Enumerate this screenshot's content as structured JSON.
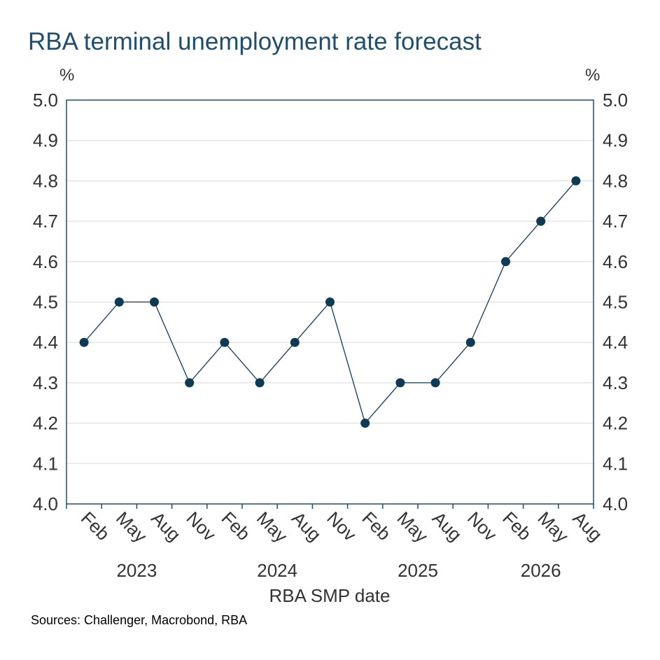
{
  "chart_data": {
    "type": "line",
    "title": "RBA terminal unemployment rate forecast",
    "xlabel": "RBA SMP date",
    "ylabel_left": "%",
    "ylabel_right": "%",
    "ylim": [
      4.0,
      5.0
    ],
    "yticks": [
      "4.0",
      "4.1",
      "4.2",
      "4.3",
      "4.4",
      "4.5",
      "4.6",
      "4.7",
      "4.8",
      "4.9",
      "5.0"
    ],
    "categories": [
      "Feb",
      "May",
      "Aug",
      "Nov",
      "Feb",
      "May",
      "Aug",
      "Nov",
      "Feb",
      "May",
      "Aug",
      "Nov",
      "Feb",
      "May",
      "Aug"
    ],
    "years": [
      {
        "label": "2023",
        "start": 0,
        "end": 3
      },
      {
        "label": "2024",
        "start": 4,
        "end": 7
      },
      {
        "label": "2025",
        "start": 8,
        "end": 11
      },
      {
        "label": "2026",
        "start": 12,
        "end": 14
      }
    ],
    "series": [
      {
        "values": [
          4.4,
          4.5,
          4.5,
          4.3,
          4.4,
          4.3,
          4.4,
          4.5,
          4.2,
          4.3,
          4.3,
          4.4,
          4.6,
          4.7,
          4.8
        ]
      }
    ],
    "grid": true,
    "line_color": "#0e3a56",
    "grid_color": "#d9d9d9",
    "axis_color": "#1f4e6e"
  },
  "source": "Sources: Challenger, Macrobond, RBA"
}
